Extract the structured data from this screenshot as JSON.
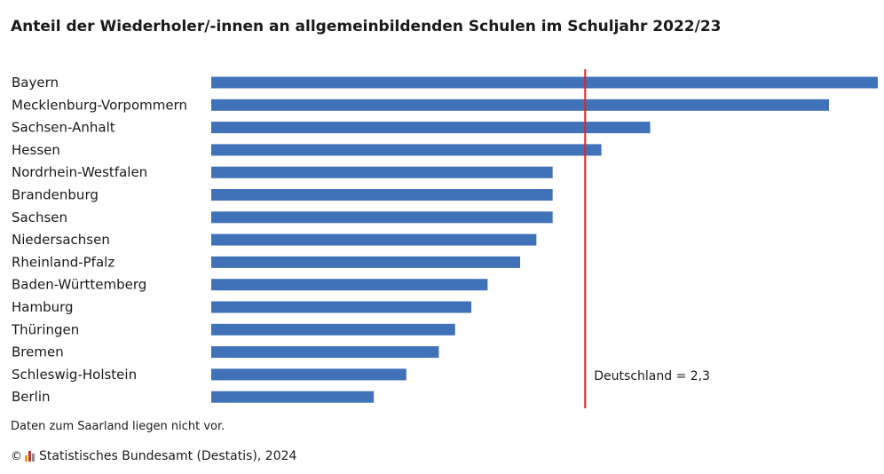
{
  "title": "Anteil der Wiederholer/-innen an allgemeinbildenden Schulen im Schuljahr 2022/23",
  "note": "Daten zum Saarland liegen nicht vor.",
  "footer": {
    "copyright_symbol": "©",
    "source": "Statistisches Bundesamt (Destatis), 2024"
  },
  "colors": {
    "bar": "#3f72b8",
    "reference_line": "#d9262c",
    "logo": [
      "#e3a11b",
      "#c0392b",
      "#8e8e8e"
    ]
  },
  "chart_data": {
    "type": "bar",
    "orientation": "horizontal",
    "categories": [
      "Bayern",
      "Mecklenburg-Vorpommern",
      "Sachsen-Anhalt",
      "Hessen",
      "Nordrhein-Westfalen",
      "Brandenburg",
      "Sachsen",
      "Niedersachsen",
      "Rheinland-Pfalz",
      "Baden-Württemberg",
      "Hamburg",
      "Thüringen",
      "Bremen",
      "Schleswig-Holstein",
      "Berlin"
    ],
    "values": [
      4.1,
      3.8,
      2.7,
      2.4,
      2.1,
      2.1,
      2.1,
      2.0,
      1.9,
      1.7,
      1.6,
      1.5,
      1.4,
      1.2,
      1.0
    ],
    "xlim": [
      0,
      4.1
    ],
    "reference_line": {
      "value": 2.3,
      "label": "Deutschland = 2,3"
    },
    "xlabel": "",
    "ylabel": ""
  }
}
